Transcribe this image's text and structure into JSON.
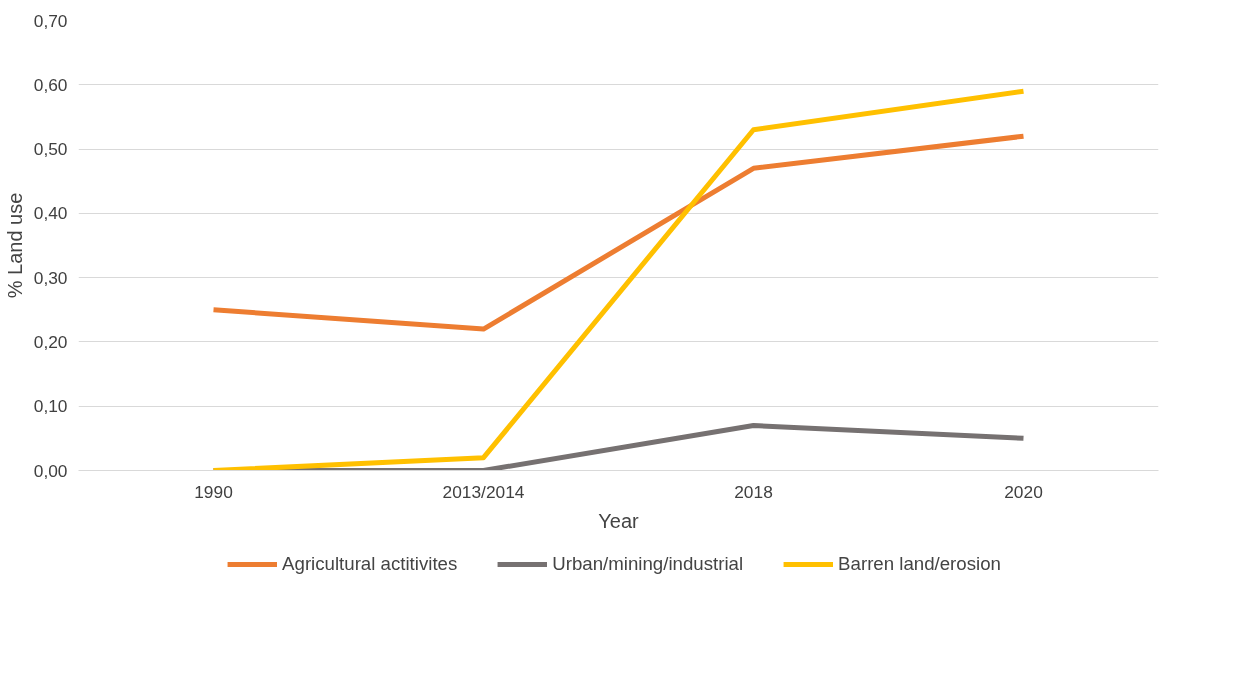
{
  "chart_data": {
    "type": "line",
    "xlabel": "Year",
    "ylabel": "% Land use",
    "categories": [
      "1990",
      "2013/2014",
      "2018",
      "2020"
    ],
    "series": [
      {
        "name": "Agricultural actitivites",
        "color": "#ed7d31",
        "values": [
          0.25,
          0.22,
          0.47,
          0.52
        ]
      },
      {
        "name": "Urban/mining/industrial",
        "color": "#767171",
        "values": [
          0,
          0,
          0.07,
          0.05
        ]
      },
      {
        "name": "Barren land/erosion",
        "color": "#ffc000",
        "values": [
          0,
          0.02,
          0.53,
          0.59
        ]
      }
    ],
    "ylim": [
      0,
      0.7
    ],
    "yticks": [
      {
        "value": 0,
        "label": "0,00"
      },
      {
        "value": 0.1,
        "label": "0,10"
      },
      {
        "value": 0.2,
        "label": "0,20"
      },
      {
        "value": 0.3,
        "label": "0,30"
      },
      {
        "value": 0.4,
        "label": "0,40"
      },
      {
        "value": 0.5,
        "label": "0,50"
      },
      {
        "value": 0.6,
        "label": "0,60"
      },
      {
        "value": 0.7,
        "label": "0,70"
      }
    ],
    "grid": "y",
    "legend": "bottom",
    "line_style": "solid",
    "marker": "none"
  }
}
